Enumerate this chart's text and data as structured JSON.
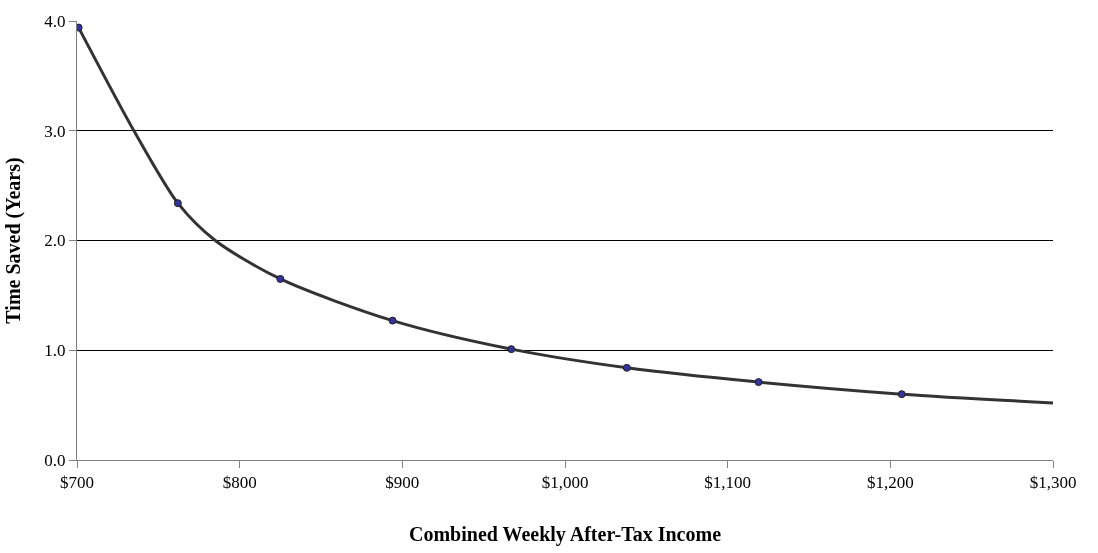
{
  "chart_data": {
    "type": "line",
    "xlabel": "Combined Weekly After-Tax Income",
    "ylabel": "Time Saved (Years)",
    "xlim": [
      700,
      1300
    ],
    "ylim": [
      0,
      4
    ],
    "xticks": [
      {
        "value": 700,
        "label": "$700"
      },
      {
        "value": 800,
        "label": "$800"
      },
      {
        "value": 900,
        "label": "$900"
      },
      {
        "value": 1000,
        "label": "$1,000"
      },
      {
        "value": 1100,
        "label": "$1,100"
      },
      {
        "value": 1200,
        "label": "$1,200"
      },
      {
        "value": 1300,
        "label": "$1,300"
      }
    ],
    "yticks": [
      {
        "value": 0,
        "label": "0.0"
      },
      {
        "value": 1,
        "label": "1.0"
      },
      {
        "value": 2,
        "label": "2.0"
      },
      {
        "value": 3,
        "label": "3.0"
      },
      {
        "value": 4,
        "label": "4.0"
      }
    ],
    "grid": "y",
    "legend": false,
    "series": [
      {
        "color": "#333333",
        "marker": "none",
        "x": [
          701,
          735,
          762,
          785,
          825,
          894,
          967,
          1038,
          1119,
          1207,
          1300
        ],
        "values": [
          3.94,
          3.0,
          2.34,
          2.0,
          1.65,
          1.27,
          1.01,
          0.84,
          0.71,
          0.6,
          0.52
        ]
      },
      {
        "type": "scatter",
        "color": "#333399",
        "marker": "circle",
        "x": [
          701,
          762,
          825,
          894,
          967,
          1038,
          1119,
          1207
        ],
        "values": [
          3.94,
          2.34,
          1.65,
          1.27,
          1.01,
          0.84,
          0.71,
          0.6
        ]
      }
    ]
  }
}
